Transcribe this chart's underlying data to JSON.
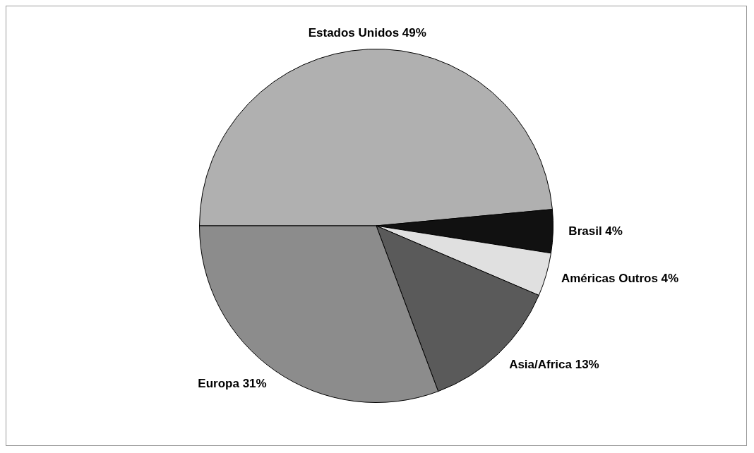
{
  "chart_data": {
    "type": "pie",
    "categories": [
      "Estados Unidos",
      "Brasil",
      "Américas Outros",
      "Asia/Africa",
      "Europa"
    ],
    "values": [
      49,
      4,
      4,
      13,
      31
    ],
    "value_labels": [
      "49%",
      "4%",
      "4%",
      "13%",
      "31%"
    ],
    "colors": [
      "#b0b0b0",
      "#111111",
      "#e0e0e0",
      "#5a5a5a",
      "#8c8c8c"
    ],
    "legend": false
  }
}
